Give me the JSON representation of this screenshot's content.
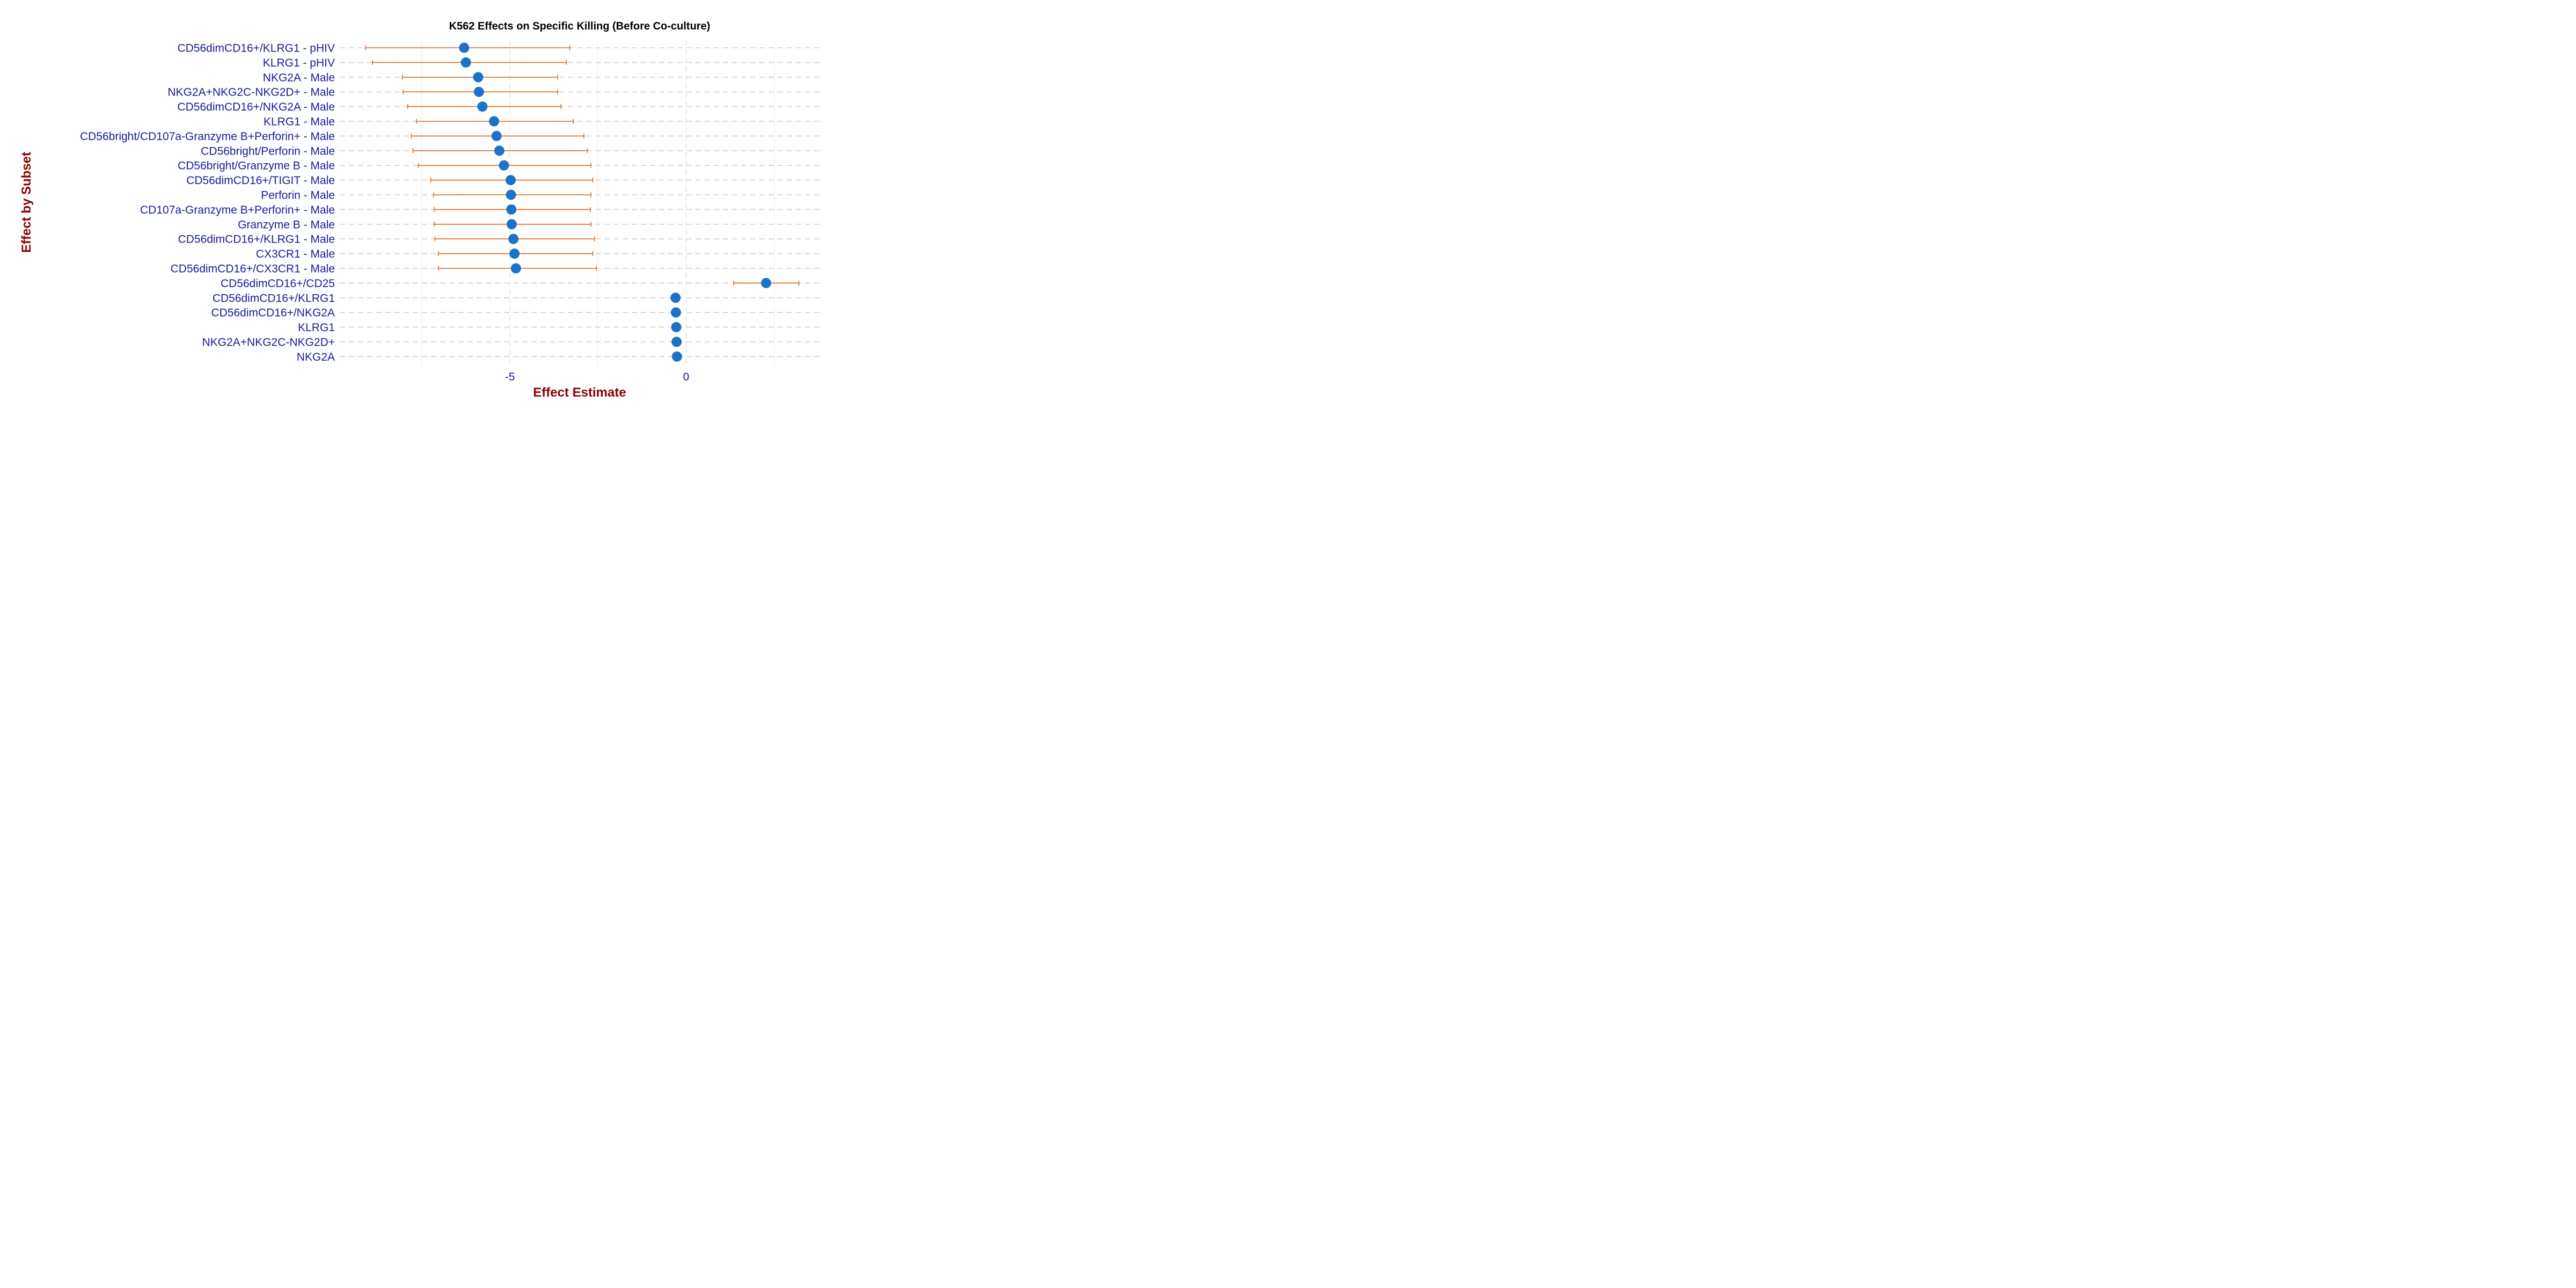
{
  "chart_data": {
    "type": "scatter",
    "subtype": "forest-plot",
    "title": "K562 Effects on Specific Killing (Before Co-culture)",
    "xlabel": "Effect Estimate",
    "ylabel": "Effect by Subset",
    "xlim": [
      -9.83,
      3.83
    ],
    "x_ticks": [
      -5,
      0
    ],
    "x_tick_labels": [
      "-5",
      "0"
    ],
    "grid": true,
    "colors": {
      "point": "#1a73c7",
      "errorbar": "#e06a1a",
      "ytick_text": "#1a1a99",
      "axis_title": "#8b0000",
      "major_grid": "#e3e3e3",
      "minor_grid": "#efefef",
      "row_grid": "#d2d2d2"
    },
    "rows": [
      {
        "label": "CD56dimCD16+/KLRG1 - pHIV",
        "estimate": -6.3,
        "lower": -9.1,
        "upper": -3.3
      },
      {
        "label": "KLRG1 - pHIV",
        "estimate": -6.25,
        "lower": -8.9,
        "upper": -3.4
      },
      {
        "label": "NKG2A - Male",
        "estimate": -5.9,
        "lower": -8.05,
        "upper": -3.65
      },
      {
        "label": "NKG2A+NKG2C-NKG2D+ - Male",
        "estimate": -5.88,
        "lower": -8.03,
        "upper": -3.65
      },
      {
        "label": "CD56dimCD16+/NKG2A - Male",
        "estimate": -5.78,
        "lower": -7.9,
        "upper": -3.55
      },
      {
        "label": "KLRG1 - Male",
        "estimate": -5.45,
        "lower": -7.65,
        "upper": -3.2
      },
      {
        "label": "CD56bright/CD107a-Granzyme B+Perforin+ - Male",
        "estimate": -5.38,
        "lower": -7.8,
        "upper": -2.9
      },
      {
        "label": "CD56bright/Perforin - Male",
        "estimate": -5.3,
        "lower": -7.75,
        "upper": -2.8
      },
      {
        "label": "CD56bright/Granzyme B - Male",
        "estimate": -5.17,
        "lower": -7.6,
        "upper": -2.7
      },
      {
        "label": "CD56dimCD16+/TIGIT - Male",
        "estimate": -4.98,
        "lower": -7.25,
        "upper": -2.65
      },
      {
        "label": "Perforin - Male",
        "estimate": -4.97,
        "lower": -7.17,
        "upper": -2.7
      },
      {
        "label": "CD107a-Granzyme B+Perforin+ - Male",
        "estimate": -4.96,
        "lower": -7.15,
        "upper": -2.72
      },
      {
        "label": "Granzyme B - Male",
        "estimate": -4.95,
        "lower": -7.15,
        "upper": -2.7
      },
      {
        "label": "CD56dimCD16+/KLRG1 - Male",
        "estimate": -4.9,
        "lower": -7.13,
        "upper": -2.6
      },
      {
        "label": "CX3CR1 - Male",
        "estimate": -4.87,
        "lower": -7.03,
        "upper": -2.65
      },
      {
        "label": "CD56dimCD16+/CX3CR1 - Male",
        "estimate": -4.83,
        "lower": -7.03,
        "upper": -2.55
      },
      {
        "label": "CD56dimCD16+/CD25",
        "estimate": 2.27,
        "lower": 1.35,
        "upper": 3.2
      },
      {
        "label": "CD56dimCD16+/KLRG1",
        "estimate": -0.3,
        "lower": -0.32,
        "upper": -0.28
      },
      {
        "label": "CD56dimCD16+/NKG2A",
        "estimate": -0.29,
        "lower": -0.31,
        "upper": -0.27
      },
      {
        "label": "KLRG1",
        "estimate": -0.28,
        "lower": -0.3,
        "upper": -0.26
      },
      {
        "label": "NKG2A+NKG2C-NKG2D+",
        "estimate": -0.27,
        "lower": -0.29,
        "upper": -0.25
      },
      {
        "label": "NKG2A",
        "estimate": -0.26,
        "lower": -0.28,
        "upper": -0.24
      }
    ]
  }
}
